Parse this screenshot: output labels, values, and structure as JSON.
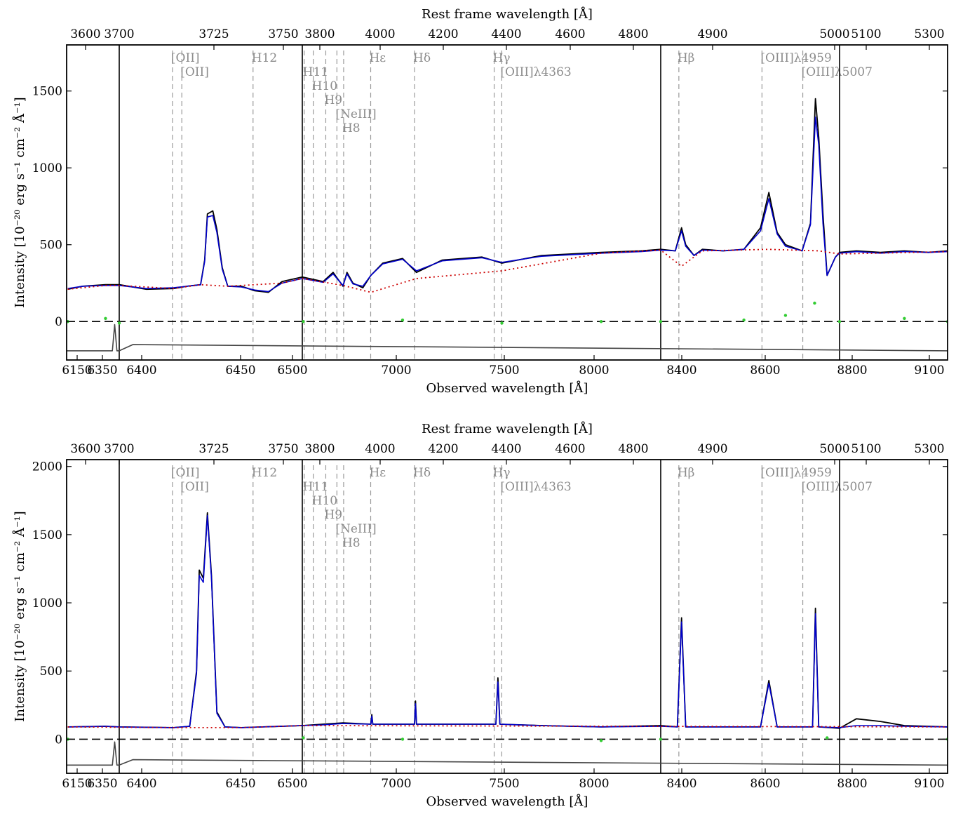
{
  "chart_data": [
    {
      "type": "line",
      "panel": "top",
      "xlabel": "Observed wavelength [Å]",
      "toplabel": "Rest frame wavelength [Å]",
      "ylabel": "Intensity [10⁻²⁰ erg s⁻¹ cm⁻² Å⁻¹]",
      "ylim": [
        -250,
        1800
      ],
      "yticks": [
        0,
        500,
        1000,
        1500
      ],
      "bottom_ticks": [
        "6150",
        "6350",
        "6400",
        "6450",
        "6500",
        "7000",
        "7500",
        "8000",
        "8400",
        "8600",
        "8800",
        "9100"
      ],
      "top_ticks": [
        "3600",
        "3700",
        "3725",
        "3750",
        "3800",
        "4000",
        "4200",
        "4400",
        "4600",
        "4800",
        "4900",
        "5000",
        "5100",
        "5300"
      ],
      "segments": [
        {
          "x_range": [
            6130,
            6360
          ],
          "rest_range": [
            3580,
            3710
          ]
        },
        {
          "x_range": [
            6360,
            6495
          ],
          "rest_range": [
            3710,
            3765
          ]
        },
        {
          "x_range": [
            6495,
            8300
          ],
          "rest_range": [
            3765,
            4840
          ]
        },
        {
          "x_range": [
            8300,
            8730
          ],
          "rest_range": [
            4840,
            5050
          ]
        },
        {
          "x_range": [
            8730,
            9180
          ],
          "rest_range": [
            5050,
            5340
          ]
        }
      ],
      "emission_lines": [
        {
          "label": "[OII]",
          "rest": 3726.0
        },
        {
          "label": "[OII]",
          "rest": 3728.8
        },
        {
          "label": "H12",
          "rest": 3750.2
        },
        {
          "label": "H11",
          "rest": 3770.6
        },
        {
          "label": "H10",
          "rest": 3797.9
        },
        {
          "label": "H9",
          "rest": 3835.4
        },
        {
          "label": "[NeIII]",
          "rest": 3868.8
        },
        {
          "label": "H8",
          "rest": 3889.0
        },
        {
          "label": "Hε",
          "rest": 3970.1
        },
        {
          "label": "Hδ",
          "rest": 4101.7
        },
        {
          "label": "Hγ",
          "rest": 4340.5
        },
        {
          "label": "[OIII]λ4363",
          "rest": 4363.2
        },
        {
          "label": "Hβ",
          "rest": 4861.3
        },
        {
          "label": "[OIII]λ4959",
          "rest": 4958.9
        },
        {
          "label": "[OIII]λ5007",
          "rest": 5006.8
        }
      ],
      "series": [
        {
          "role": "observed",
          "color": "#000000",
          "x": [
            6135,
            6200,
            6300,
            6360,
            6380,
            6400,
            6410,
            6420,
            6423,
            6425,
            6429,
            6432,
            6436,
            6440,
            6450,
            6460,
            6470,
            6480,
            6495,
            6600,
            6650,
            6700,
            6720,
            6750,
            6800,
            6840,
            6900,
            7000,
            7070,
            7200,
            7400,
            7500,
            7700,
            8000,
            8200,
            8300,
            8335,
            8350,
            8360,
            8380,
            8400,
            8450,
            8500,
            8540,
            8560,
            8580,
            8600,
            8640,
            8660,
            8672,
            8680,
            8690,
            8700,
            8720,
            8730,
            8800,
            8900,
            9000,
            9100,
            9180
          ],
          "y": [
            210,
            230,
            240,
            240,
            210,
            215,
            230,
            240,
            400,
            700,
            720,
            600,
            350,
            230,
            230,
            200,
            190,
            260,
            290,
            260,
            320,
            230,
            320,
            250,
            220,
            300,
            380,
            410,
            320,
            400,
            420,
            380,
            430,
            450,
            460,
            470,
            460,
            610,
            500,
            430,
            470,
            460,
            470,
            610,
            840,
            580,
            500,
            460,
            640,
            1450,
            1200,
            700,
            300,
            420,
            450,
            460,
            450,
            460,
            450,
            460
          ]
        },
        {
          "role": "fit",
          "color": "#0000cc",
          "x": [
            6135,
            6200,
            6300,
            6360,
            6380,
            6400,
            6410,
            6420,
            6423,
            6425,
            6429,
            6432,
            6436,
            6440,
            6450,
            6460,
            6470,
            6480,
            6495,
            6600,
            6650,
            6700,
            6720,
            6750,
            6800,
            6840,
            6900,
            7000,
            7070,
            7200,
            7400,
            7500,
            7700,
            8000,
            8200,
            8300,
            8335,
            8350,
            8360,
            8380,
            8400,
            8450,
            8500,
            8540,
            8560,
            8580,
            8600,
            8640,
            8660,
            8672,
            8680,
            8690,
            8700,
            8720,
            8730,
            8800,
            8900,
            9000,
            9100,
            9180
          ],
          "y": [
            215,
            230,
            235,
            235,
            215,
            220,
            230,
            240,
            390,
            680,
            690,
            580,
            340,
            230,
            225,
            205,
            195,
            250,
            280,
            255,
            310,
            235,
            310,
            245,
            230,
            300,
            375,
            405,
            330,
            395,
            415,
            385,
            425,
            445,
            455,
            465,
            460,
            590,
            490,
            430,
            465,
            460,
            470,
            590,
            800,
            570,
            490,
            460,
            630,
            1330,
            1150,
            640,
            300,
            420,
            445,
            455,
            445,
            455,
            450,
            455
          ]
        },
        {
          "role": "stellar-continuum",
          "color": "#cc0000",
          "x": [
            6135,
            6300,
            6360,
            6400,
            6420,
            6440,
            6480,
            6495,
            6700,
            6840,
            7070,
            7500,
            8000,
            8300,
            8350,
            8400,
            8560,
            8680,
            8730,
            9180
          ],
          "y": [
            210,
            235,
            235,
            215,
            240,
            230,
            250,
            280,
            235,
            190,
            280,
            330,
            445,
            465,
            360,
            460,
            470,
            460,
            440,
            455
          ]
        },
        {
          "role": "zero-level",
          "color": "#000000",
          "x": [
            6130,
            9180
          ],
          "y": [
            0,
            0
          ]
        },
        {
          "role": "residuals",
          "color": "#33cc33",
          "x": [
            6135,
            6300,
            6360,
            6500,
            7000,
            7500,
            8000,
            8300,
            8500,
            8600,
            8670,
            8730,
            9000,
            9180
          ],
          "y": [
            0,
            20,
            -10,
            0,
            10,
            -10,
            0,
            0,
            10,
            40,
            120,
            0,
            20,
            0
          ]
        },
        {
          "role": "sky-spectrum",
          "color": "#444444",
          "x": [
            6130,
            6330,
            6340,
            6350,
            6360,
            6370,
            9180
          ],
          "y": [
            -190,
            -190,
            -20,
            -190,
            -190,
            -150,
            -190
          ]
        }
      ]
    },
    {
      "type": "line",
      "panel": "bottom",
      "xlabel": "Observed wavelength [Å]",
      "toplabel": "Rest frame wavelength [Å]",
      "ylabel": "Intensity [10⁻²⁰ erg s⁻¹ cm⁻² Å⁻¹]",
      "ylim": [
        -250,
        2050
      ],
      "yticks": [
        0,
        500,
        1000,
        1500,
        2000
      ],
      "bottom_ticks": [
        "6150",
        "6350",
        "6400",
        "6450",
        "6500",
        "7000",
        "7500",
        "8000",
        "8400",
        "8600",
        "8800",
        "9100"
      ],
      "top_ticks": [
        "3600",
        "3700",
        "3725",
        "3750",
        "3800",
        "4000",
        "4200",
        "4400",
        "4600",
        "4800",
        "4900",
        "5000",
        "5100",
        "5300"
      ],
      "segments": [
        {
          "x_range": [
            6130,
            6360
          ],
          "rest_range": [
            3580,
            3710
          ]
        },
        {
          "x_range": [
            6360,
            6495
          ],
          "rest_range": [
            3710,
            3765
          ]
        },
        {
          "x_range": [
            6495,
            8300
          ],
          "rest_range": [
            3765,
            4840
          ]
        },
        {
          "x_range": [
            8300,
            8730
          ],
          "rest_range": [
            4840,
            5050
          ]
        },
        {
          "x_range": [
            8730,
            9180
          ],
          "rest_range": [
            5050,
            5340
          ]
        }
      ],
      "emission_lines": [
        {
          "label": "[OII]",
          "rest": 3726.0
        },
        {
          "label": "[OII]",
          "rest": 3728.8
        },
        {
          "label": "H12",
          "rest": 3750.2
        },
        {
          "label": "H11",
          "rest": 3770.6
        },
        {
          "label": "H10",
          "rest": 3797.9
        },
        {
          "label": "H9",
          "rest": 3835.4
        },
        {
          "label": "[NeIII]",
          "rest": 3868.8
        },
        {
          "label": "H8",
          "rest": 3889.0
        },
        {
          "label": "Hε",
          "rest": 3970.1
        },
        {
          "label": "Hδ",
          "rest": 4101.7
        },
        {
          "label": "Hγ",
          "rest": 4340.5
        },
        {
          "label": "[OIII]λ4363",
          "rest": 4363.2
        },
        {
          "label": "Hβ",
          "rest": 4861.3
        },
        {
          "label": "[OIII]λ4959",
          "rest": 4958.9
        },
        {
          "label": "[OIII]λ5007",
          "rest": 5006.8
        }
      ],
      "series": [
        {
          "role": "observed",
          "color": "#000000",
          "x": [
            6135,
            6300,
            6360,
            6400,
            6412,
            6417,
            6419,
            6422,
            6425,
            6428,
            6432,
            6438,
            6450,
            6495,
            6600,
            6700,
            6840,
            6845,
            6850,
            7060,
            7065,
            7070,
            7470,
            7480,
            7490,
            7700,
            8000,
            8300,
            8340,
            8350,
            8360,
            8500,
            8540,
            8560,
            8580,
            8640,
            8665,
            8672,
            8680,
            8730,
            8800,
            8900,
            9000,
            9180
          ],
          "y": [
            90,
            95,
            90,
            85,
            95,
            500,
            1240,
            1180,
            1660,
            1200,
            200,
            90,
            85,
            100,
            110,
            120,
            110,
            180,
            110,
            110,
            280,
            110,
            110,
            450,
            110,
            100,
            90,
            100,
            90,
            890,
            90,
            90,
            90,
            430,
            90,
            90,
            90,
            960,
            90,
            80,
            150,
            130,
            100,
            90
          ]
        },
        {
          "role": "fit",
          "color": "#0000cc",
          "x": [
            6135,
            6300,
            6360,
            6400,
            6412,
            6417,
            6419,
            6422,
            6425,
            6428,
            6432,
            6438,
            6450,
            6495,
            6600,
            6700,
            6840,
            6845,
            6850,
            7060,
            7065,
            7070,
            7470,
            7480,
            7490,
            7700,
            8000,
            8300,
            8340,
            8350,
            8360,
            8500,
            8540,
            8560,
            8580,
            8640,
            8665,
            8672,
            8680,
            8730,
            8800,
            8900,
            9000,
            9180
          ],
          "y": [
            90,
            95,
            90,
            85,
            95,
            480,
            1200,
            1150,
            1640,
            1180,
            190,
            90,
            85,
            100,
            105,
            115,
            110,
            170,
            110,
            110,
            260,
            110,
            110,
            420,
            110,
            100,
            90,
            95,
            90,
            860,
            90,
            90,
            90,
            410,
            90,
            90,
            90,
            920,
            90,
            85,
            100,
            100,
            95,
            90
          ]
        },
        {
          "role": "stellar-continuum",
          "color": "#cc0000",
          "x": [
            6135,
            6400,
            6425,
            6450,
            6495,
            9180
          ],
          "y": [
            90,
            85,
            85,
            85,
            100,
            90
          ]
        },
        {
          "role": "zero-level",
          "color": "#000000",
          "x": [
            6130,
            9180
          ],
          "y": [
            0,
            0
          ]
        },
        {
          "role": "residuals",
          "color": "#33cc33",
          "x": [
            6135,
            6500,
            7000,
            8000,
            8300,
            8700,
            9180
          ],
          "y": [
            0,
            10,
            0,
            -10,
            0,
            10,
            0
          ]
        },
        {
          "role": "sky-spectrum",
          "color": "#444444",
          "x": [
            6130,
            6330,
            6340,
            6350,
            6360,
            6370,
            9180
          ],
          "y": [
            -190,
            -190,
            -20,
            -190,
            -190,
            -150,
            -190
          ]
        }
      ]
    }
  ]
}
